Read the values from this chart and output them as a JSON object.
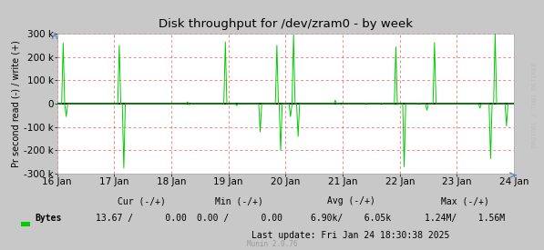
{
  "title": "Disk throughput for /dev/zram0 - by week",
  "ylabel": "Pr second read (-) / write (+)",
  "xlabel_ticks": [
    "16 Jan",
    "17 Jan",
    "18 Jan",
    "19 Jan",
    "20 Jan",
    "21 Jan",
    "22 Jan",
    "23 Jan",
    "24 Jan"
  ],
  "ylim": [
    -300000,
    300000
  ],
  "yticks": [
    -300000,
    -200000,
    -100000,
    0,
    100000,
    200000,
    300000
  ],
  "ytick_labels": [
    "-300 k",
    "-200 k",
    "-100 k",
    "0",
    "100 k",
    "200 k",
    "300 k"
  ],
  "bg_color": "#c8c8c8",
  "plot_bg_color": "#ffffff",
  "grid_color": "#ff0000",
  "line_color": "#00cc00",
  "zero_line_color": "#000000",
  "spine_color": "#aaaaaa",
  "watermark_text": "RRDTOOL / TOBI OETIKER",
  "munin_text": "Munin 2.0.76",
  "legend_label": "Bytes",
  "last_update": "Last update: Fri Jan 24 18:30:38 2025",
  "num_points": 604
}
